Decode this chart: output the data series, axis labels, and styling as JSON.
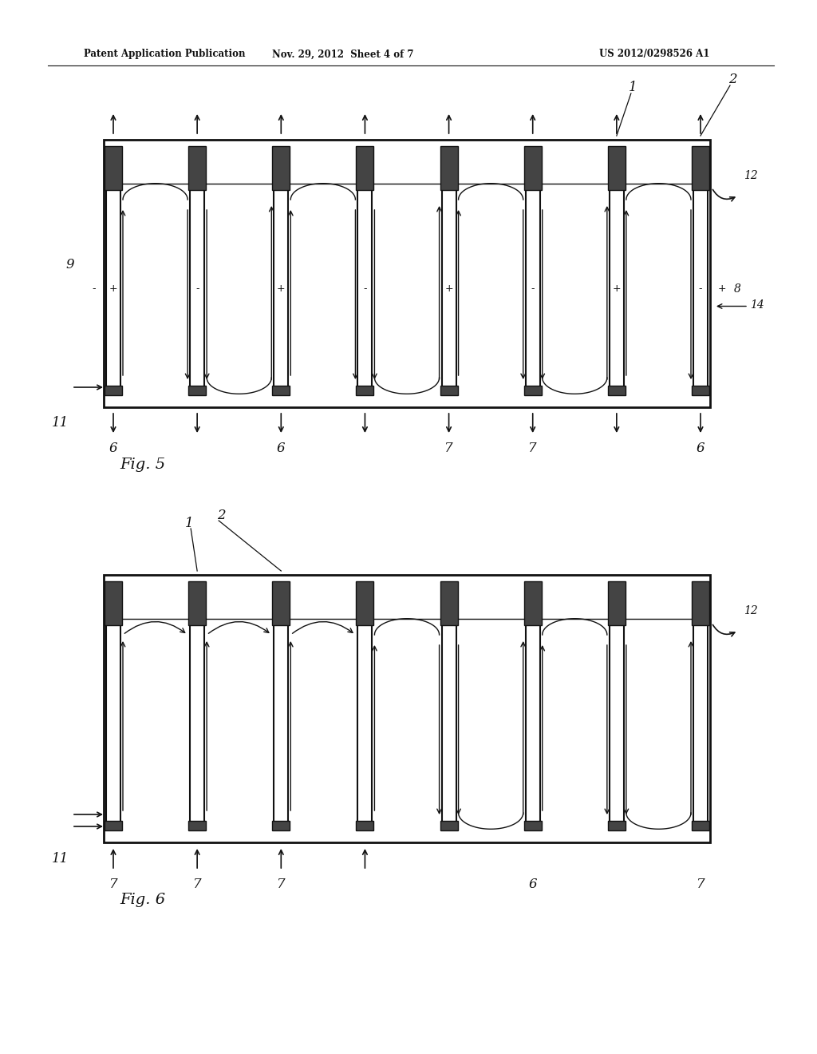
{
  "bg_color": "#ffffff",
  "header_text": "Patent Application Publication",
  "header_date": "Nov. 29, 2012  Sheet 4 of 7",
  "header_patent": "US 2012/0298526 A1",
  "fig5_label": "Fig. 5",
  "fig6_label": "Fig. 6",
  "line_color": "#111111",
  "line_width": 1.4,
  "thick_line": 2.0
}
